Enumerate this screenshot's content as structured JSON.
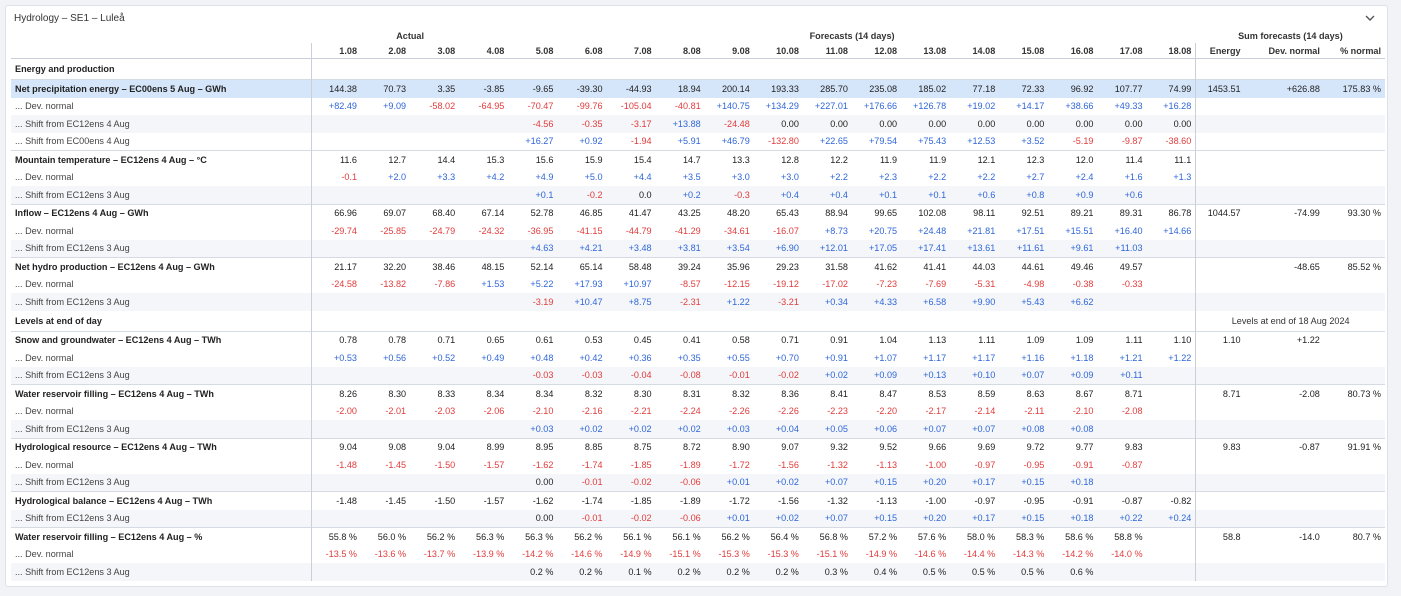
{
  "panel": {
    "title": "Hydrology – SE1 – Luleå",
    "collapse_icon": "chevron-down-icon"
  },
  "header": {
    "groups": {
      "actual": "Actual",
      "forecasts": "Forecasts (14 days)",
      "sum": "Sum forecasts (14 days)"
    },
    "columns": [
      "1.08",
      "2.08",
      "3.08",
      "4.08",
      "5.08",
      "6.08",
      "7.08",
      "8.08",
      "9.08",
      "10.08",
      "11.08",
      "12.08",
      "13.08",
      "14.08",
      "15.08",
      "16.08",
      "17.08",
      "18.08"
    ],
    "sum_columns": [
      "Energy",
      "Dev. normal",
      "% normal"
    ]
  },
  "colors": {
    "negative": "#e23b3b",
    "positive": "#2f66d8",
    "highlight": "#d6e6fa"
  },
  "rows": [
    {
      "type": "section",
      "label": "Energy and production",
      "v": [],
      "s": [
        "",
        "",
        ""
      ]
    },
    {
      "type": "main",
      "hl": true,
      "label": "Net precipitation energy – EC00ens 5 Aug – GWh",
      "v": [
        "144.38",
        "70.73",
        "3.35",
        "-3.85",
        "-9.65",
        "-39.30",
        "-44.93",
        "18.94",
        "200.14",
        "193.33",
        "285.70",
        "235.08",
        "185.02",
        "77.18",
        "72.33",
        "96.92",
        "107.77",
        "74.99"
      ],
      "s": [
        "1453.51",
        "+626.88",
        "175.83 %"
      ]
    },
    {
      "type": "sub",
      "label": "Dev. normal",
      "v": [
        "+82.49",
        "+9.09",
        "-58.02",
        "-64.95",
        "-70.47",
        "-99.76",
        "-105.04",
        "-40.81",
        "+140.75",
        "+134.29",
        "+227.01",
        "+176.66",
        "+126.78",
        "+19.02",
        "+14.17",
        "+38.66",
        "+49.33",
        "+16.28"
      ],
      "s": [
        "",
        "",
        ""
      ]
    },
    {
      "type": "sub",
      "alt": true,
      "label": "Shift from EC12ens 4 Aug",
      "v": [
        "",
        "",
        "",
        "",
        "-4.56",
        "-0.35",
        "-3.17",
        "+13.88",
        "-24.48",
        "0.00",
        "0.00",
        "0.00",
        "0.00",
        "0.00",
        "0.00",
        "0.00",
        "0.00",
        "0.00"
      ],
      "s": [
        "",
        "",
        ""
      ]
    },
    {
      "type": "sub",
      "label": "Shift from EC00ens 4 Aug",
      "v": [
        "",
        "",
        "",
        "",
        "+16.27",
        "+0.92",
        "-1.94",
        "+5.91",
        "+46.79",
        "-132.80",
        "+22.65",
        "+79.54",
        "+75.43",
        "+12.53",
        "+3.52",
        "-5.19",
        "-9.87",
        "-38.60"
      ],
      "s": [
        "",
        "",
        ""
      ]
    },
    {
      "type": "main",
      "label": "Mountain temperature – EC12ens 4 Aug – °C",
      "v": [
        "11.6",
        "12.7",
        "14.4",
        "15.3",
        "15.6",
        "15.9",
        "15.4",
        "14.7",
        "13.3",
        "12.8",
        "12.2",
        "11.9",
        "11.9",
        "12.1",
        "12.3",
        "12.0",
        "11.4",
        "11.1"
      ],
      "s": [
        "",
        "",
        ""
      ]
    },
    {
      "type": "sub",
      "label": "Dev. normal",
      "v": [
        "-0.1",
        "+2.0",
        "+3.3",
        "+4.2",
        "+4.9",
        "+5.0",
        "+4.4",
        "+3.5",
        "+3.0",
        "+3.0",
        "+2.2",
        "+2.3",
        "+2.2",
        "+2.2",
        "+2.7",
        "+2.4",
        "+1.6",
        "+1.3"
      ],
      "s": [
        "",
        "",
        ""
      ]
    },
    {
      "type": "sub",
      "alt": true,
      "label": "Shift from EC12ens 3 Aug",
      "v": [
        "",
        "",
        "",
        "",
        "+0.1",
        "-0.2",
        "0.0",
        "+0.2",
        "-0.3",
        "+0.4",
        "+0.4",
        "+0.1",
        "+0.1",
        "+0.6",
        "+0.8",
        "+0.9",
        "+0.6",
        ""
      ],
      "s": [
        "",
        "",
        ""
      ]
    },
    {
      "type": "main",
      "label": "Inflow – EC12ens 4 Aug – GWh",
      "v": [
        "66.96",
        "69.07",
        "68.40",
        "67.14",
        "52.78",
        "46.85",
        "41.47",
        "43.25",
        "48.20",
        "65.43",
        "88.94",
        "99.65",
        "102.08",
        "98.11",
        "92.51",
        "89.21",
        "89.31",
        "86.78"
      ],
      "s": [
        "1044.57",
        "-74.99",
        "93.30 %"
      ]
    },
    {
      "type": "sub",
      "label": "Dev. normal",
      "v": [
        "-29.74",
        "-25.85",
        "-24.79",
        "-24.32",
        "-36.95",
        "-41.15",
        "-44.79",
        "-41.29",
        "-34.61",
        "-16.07",
        "+8.73",
        "+20.75",
        "+24.48",
        "+21.81",
        "+17.51",
        "+15.51",
        "+16.40",
        "+14.66"
      ],
      "s": [
        "",
        "",
        ""
      ]
    },
    {
      "type": "sub",
      "alt": true,
      "label": "Shift from EC12ens 3 Aug",
      "v": [
        "",
        "",
        "",
        "",
        "+4.63",
        "+4.21",
        "+3.48",
        "+3.81",
        "+3.54",
        "+6.90",
        "+12.01",
        "+17.05",
        "+17.41",
        "+13.61",
        "+11.61",
        "+9.61",
        "+11.03",
        ""
      ],
      "s": [
        "",
        "",
        ""
      ]
    },
    {
      "type": "main",
      "label": "Net hydro production – EC12ens 4 Aug – GWh",
      "v": [
        "21.17",
        "32.20",
        "38.46",
        "48.15",
        "52.14",
        "65.14",
        "58.48",
        "39.24",
        "35.96",
        "29.23",
        "31.58",
        "41.62",
        "41.41",
        "44.03",
        "44.61",
        "49.46",
        "49.57",
        ""
      ],
      "s": [
        "",
        "-48.65",
        "85.52 %"
      ]
    },
    {
      "type": "sub",
      "label": "Dev. normal",
      "v": [
        "-24.58",
        "-13.82",
        "-7.86",
        "+1.53",
        "+5.22",
        "+17.93",
        "+10.97",
        "-8.57",
        "-12.15",
        "-19.12",
        "-17.02",
        "-7.23",
        "-7.69",
        "-5.31",
        "-4.98",
        "-0.38",
        "-0.33",
        ""
      ],
      "s": [
        "",
        "",
        ""
      ]
    },
    {
      "type": "sub",
      "alt": true,
      "label": "Shift from EC12ens 3 Aug",
      "v": [
        "",
        "",
        "",
        "",
        "-3.19",
        "+10.47",
        "+8.75",
        "-2.31",
        "+1.22",
        "-3.21",
        "+0.34",
        "+4.33",
        "+6.58",
        "+9.90",
        "+5.43",
        "+6.62",
        "",
        ""
      ],
      "s": [
        "",
        "",
        ""
      ]
    },
    {
      "type": "section2",
      "label": "Levels at end of day",
      "v": [],
      "levels_label": "Levels at end of 18 Aug 2024"
    },
    {
      "type": "main",
      "label": "Snow and groundwater – EC12ens 4 Aug – TWh",
      "v": [
        "0.78",
        "0.78",
        "0.71",
        "0.65",
        "0.61",
        "0.53",
        "0.45",
        "0.41",
        "0.58",
        "0.71",
        "0.91",
        "1.04",
        "1.13",
        "1.11",
        "1.09",
        "1.09",
        "1.11",
        "1.10"
      ],
      "s": [
        "1.10",
        "+1.22",
        ""
      ]
    },
    {
      "type": "sub",
      "label": "Dev. normal",
      "v": [
        "+0.53",
        "+0.56",
        "+0.52",
        "+0.49",
        "+0.48",
        "+0.42",
        "+0.36",
        "+0.35",
        "+0.55",
        "+0.70",
        "+0.91",
        "+1.07",
        "+1.17",
        "+1.17",
        "+1.16",
        "+1.18",
        "+1.21",
        "+1.22"
      ],
      "s": [
        "",
        "",
        ""
      ]
    },
    {
      "type": "sub",
      "alt": true,
      "label": "Shift from EC12ens 3 Aug",
      "v": [
        "",
        "",
        "",
        "",
        "-0.03",
        "-0.03",
        "-0.04",
        "-0.08",
        "-0.01",
        "-0.02",
        "+0.02",
        "+0.09",
        "+0.13",
        "+0.10",
        "+0.07",
        "+0.09",
        "+0.11",
        ""
      ],
      "s": [
        "",
        "",
        ""
      ]
    },
    {
      "type": "main",
      "label": "Water reservoir filling – EC12ens 4 Aug – TWh",
      "v": [
        "8.26",
        "8.30",
        "8.33",
        "8.34",
        "8.34",
        "8.32",
        "8.30",
        "8.31",
        "8.32",
        "8.36",
        "8.41",
        "8.47",
        "8.53",
        "8.59",
        "8.63",
        "8.67",
        "8.71",
        ""
      ],
      "s": [
        "8.71",
        "-2.08",
        "80.73 %"
      ]
    },
    {
      "type": "sub",
      "label": "Dev. normal",
      "v": [
        "-2.00",
        "-2.01",
        "-2.03",
        "-2.06",
        "-2.10",
        "-2.16",
        "-2.21",
        "-2.24",
        "-2.26",
        "-2.26",
        "-2.23",
        "-2.20",
        "-2.17",
        "-2.14",
        "-2.11",
        "-2.10",
        "-2.08",
        ""
      ],
      "s": [
        "",
        "",
        ""
      ]
    },
    {
      "type": "sub",
      "alt": true,
      "label": "Shift from EC12ens 3 Aug",
      "v": [
        "",
        "",
        "",
        "",
        "+0.03",
        "+0.02",
        "+0.02",
        "+0.02",
        "+0.03",
        "+0.04",
        "+0.05",
        "+0.06",
        "+0.07",
        "+0.07",
        "+0.08",
        "+0.08",
        "",
        ""
      ],
      "s": [
        "",
        "",
        ""
      ]
    },
    {
      "type": "main",
      "label": "Hydrological resource – EC12ens 4 Aug – TWh",
      "v": [
        "9.04",
        "9.08",
        "9.04",
        "8.99",
        "8.95",
        "8.85",
        "8.75",
        "8.72",
        "8.90",
        "9.07",
        "9.32",
        "9.52",
        "9.66",
        "9.69",
        "9.72",
        "9.77",
        "9.83",
        ""
      ],
      "s": [
        "9.83",
        "-0.87",
        "91.91 %"
      ]
    },
    {
      "type": "sub",
      "label": "Dev. normal",
      "v": [
        "-1.48",
        "-1.45",
        "-1.50",
        "-1.57",
        "-1.62",
        "-1.74",
        "-1.85",
        "-1.89",
        "-1.72",
        "-1.56",
        "-1.32",
        "-1.13",
        "-1.00",
        "-0.97",
        "-0.95",
        "-0.91",
        "-0.87",
        ""
      ],
      "s": [
        "",
        "",
        ""
      ]
    },
    {
      "type": "sub",
      "alt": true,
      "label": "Shift from EC12ens 3 Aug",
      "v": [
        "",
        "",
        "",
        "",
        "0.00",
        "-0.01",
        "-0.02",
        "-0.06",
        "+0.01",
        "+0.02",
        "+0.07",
        "+0.15",
        "+0.20",
        "+0.17",
        "+0.15",
        "+0.18",
        "",
        ""
      ],
      "s": [
        "",
        "",
        ""
      ]
    },
    {
      "type": "main",
      "label": "Hydrological balance – EC12ens 4 Aug – TWh",
      "v": [
        "-1.48",
        "-1.45",
        "-1.50",
        "-1.57",
        "-1.62",
        "-1.74",
        "-1.85",
        "-1.89",
        "-1.72",
        "-1.56",
        "-1.32",
        "-1.13",
        "-1.00",
        "-0.97",
        "-0.95",
        "-0.91",
        "-0.87",
        "-0.82"
      ],
      "s": [
        "",
        "",
        ""
      ]
    },
    {
      "type": "sub",
      "alt": true,
      "label": "Shift from EC12ens 3 Aug",
      "v": [
        "",
        "",
        "",
        "",
        "0.00",
        "-0.01",
        "-0.02",
        "-0.06",
        "+0.01",
        "+0.02",
        "+0.07",
        "+0.15",
        "+0.20",
        "+0.17",
        "+0.15",
        "+0.18",
        "+0.22",
        "+0.24"
      ],
      "s": [
        "",
        "",
        ""
      ]
    },
    {
      "type": "main",
      "label": "Water reservoir filling – EC12ens 4 Aug – %",
      "v": [
        "55.8 %",
        "56.0 %",
        "56.2 %",
        "56.3 %",
        "56.3 %",
        "56.2 %",
        "56.1 %",
        "56.1 %",
        "56.2 %",
        "56.4 %",
        "56.8 %",
        "57.2 %",
        "57.6 %",
        "58.0 %",
        "58.3 %",
        "58.6 %",
        "58.8 %",
        ""
      ],
      "s": [
        "58.8",
        "-14.0",
        "80.7 %"
      ]
    },
    {
      "type": "sub",
      "label": "Dev. normal",
      "v": [
        "-13.5 %",
        "-13.6 %",
        "-13.7 %",
        "-13.9 %",
        "-14.2 %",
        "-14.6 %",
        "-14.9 %",
        "-15.1 %",
        "-15.3 %",
        "-15.3 %",
        "-15.1 %",
        "-14.9 %",
        "-14.6 %",
        "-14.4 %",
        "-14.3 %",
        "-14.2 %",
        "-14.0 %",
        ""
      ],
      "s": [
        "",
        "",
        ""
      ]
    },
    {
      "type": "sub",
      "alt": true,
      "label": "Shift from EC12ens 3 Aug",
      "v": [
        "",
        "",
        "",
        "",
        "0.2 %",
        "0.2 %",
        "0.1 %",
        "0.2 %",
        "0.2 %",
        "0.2 %",
        "0.3 %",
        "0.4 %",
        "0.5 %",
        "0.5 %",
        "0.5 %",
        "0.6 %",
        "",
        ""
      ],
      "s": [
        "",
        "",
        ""
      ]
    }
  ]
}
